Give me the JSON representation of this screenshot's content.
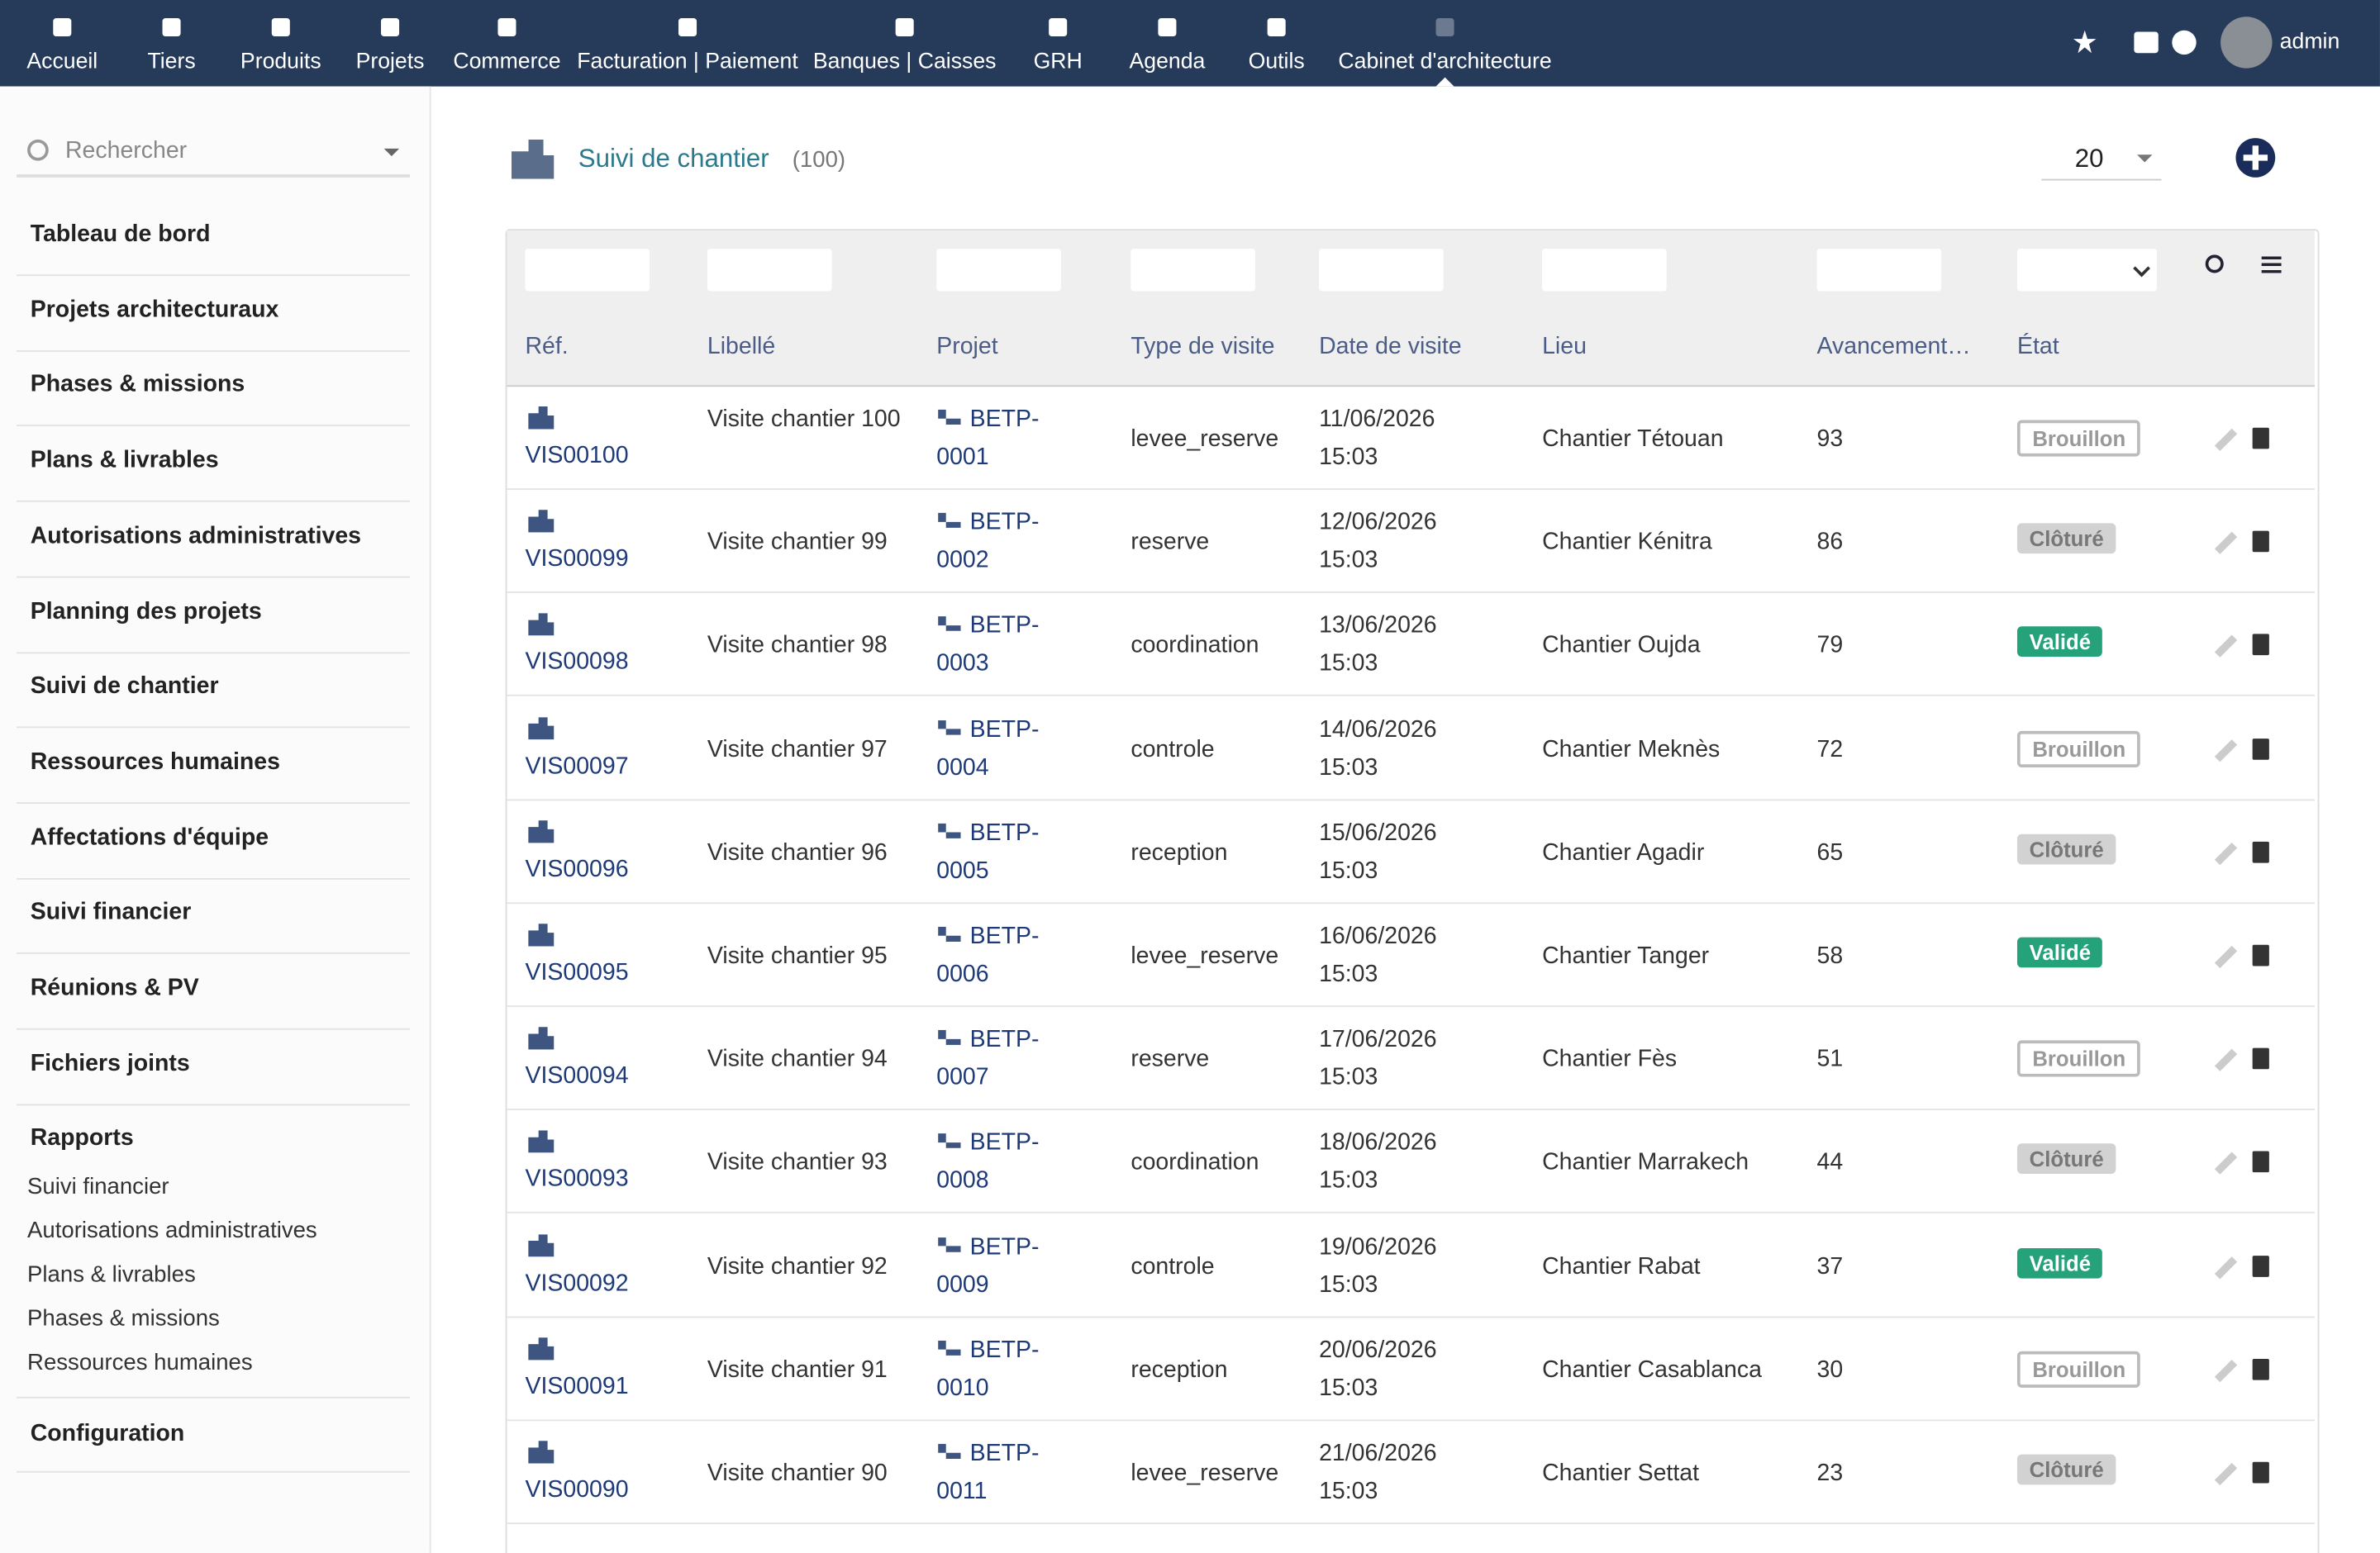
{
  "nav": [
    {
      "label": "Accueil"
    },
    {
      "label": "Tiers"
    },
    {
      "label": "Produits"
    },
    {
      "label": "Projets"
    },
    {
      "label": "Commerce"
    },
    {
      "label": "Facturation | Paiement"
    },
    {
      "label": "Banques | Caisses"
    },
    {
      "label": "GRH"
    },
    {
      "label": "Agenda"
    },
    {
      "label": "Outils"
    },
    {
      "label": "Cabinet d'architecture"
    }
  ],
  "user": "admin",
  "search_placeholder": "Rechercher",
  "menu": [
    "Tableau de bord",
    "Projets architecturaux",
    "Phases & missions",
    "Plans & livrables",
    "Autorisations administratives",
    "Planning des projets",
    "Suivi de chantier",
    "Ressources humaines",
    "Affectations d'équipe",
    "Suivi financier",
    "Réunions & PV",
    "Fichiers joints"
  ],
  "reports": {
    "title": "Rapports",
    "items": [
      "Suivi financier",
      "Autorisations administratives",
      "Plans & livrables",
      "Phases & missions",
      "Ressources humaines"
    ]
  },
  "config": "Configuration",
  "page": {
    "title": "Suivi de chantier",
    "count": "(100)",
    "per_page": "20"
  },
  "table": {
    "headers": [
      "Réf.",
      "Libellé",
      "Projet",
      "Type de visite",
      "Date de visite",
      "Lieu",
      "Avancement…",
      "État"
    ],
    "rows": [
      [
        "VIS00100",
        "Visite chantier 100",
        "BETP-0001",
        "levee_reserve",
        "11/06/2026 15:03",
        "Chantier Tétouan",
        "93",
        "Brouillon"
      ],
      [
        "VIS00099",
        "Visite chantier 99",
        "BETP-0002",
        "reserve",
        "12/06/2026 15:03",
        "Chantier Kénitra",
        "86",
        "Clôturé"
      ],
      [
        "VIS00098",
        "Visite chantier 98",
        "BETP-0003",
        "coordination",
        "13/06/2026 15:03",
        "Chantier Oujda",
        "79",
        "Validé"
      ],
      [
        "VIS00097",
        "Visite chantier 97",
        "BETP-0004",
        "controle",
        "14/06/2026 15:03",
        "Chantier Meknès",
        "72",
        "Brouillon"
      ],
      [
        "VIS00096",
        "Visite chantier 96",
        "BETP-0005",
        "reception",
        "15/06/2026 15:03",
        "Chantier Agadir",
        "65",
        "Clôturé"
      ],
      [
        "VIS00095",
        "Visite chantier 95",
        "BETP-0006",
        "levee_reserve",
        "16/06/2026 15:03",
        "Chantier Tanger",
        "58",
        "Validé"
      ],
      [
        "VIS00094",
        "Visite chantier 94",
        "BETP-0007",
        "reserve",
        "17/06/2026 15:03",
        "Chantier Fès",
        "51",
        "Brouillon"
      ],
      [
        "VIS00093",
        "Visite chantier 93",
        "BETP-0008",
        "coordination",
        "18/06/2026 15:03",
        "Chantier Marrakech",
        "44",
        "Clôturé"
      ],
      [
        "VIS00092",
        "Visite chantier 92",
        "BETP-0009",
        "controle",
        "19/06/2026 15:03",
        "Chantier Rabat",
        "37",
        "Validé"
      ],
      [
        "VIS00091",
        "Visite chantier 91",
        "BETP-0010",
        "reception",
        "20/06/2026 15:03",
        "Chantier Casablanca",
        "30",
        "Brouillon"
      ],
      [
        "VIS00090",
        "Visite chantier 90",
        "BETP-0011",
        "levee_reserve",
        "21/06/2026 15:03",
        "Chantier Settat",
        "23",
        "Clôturé"
      ]
    ]
  }
}
